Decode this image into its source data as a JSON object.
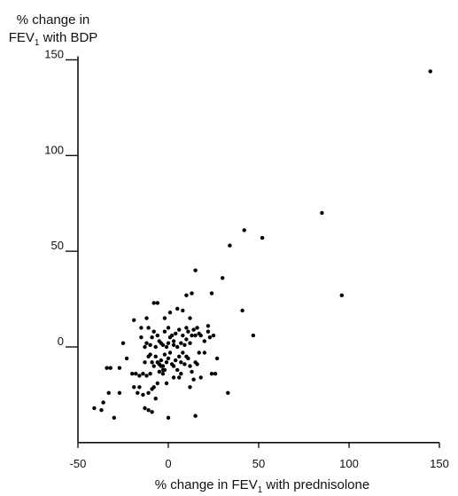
{
  "chart_data": {
    "type": "scatter",
    "ylabel_line1": "% change in",
    "ylabel_line2_pre": "FEV",
    "ylabel_line2_sub": "1",
    "ylabel_line2_post": " with BDP",
    "xlabel_pre": "% change in FEV",
    "xlabel_sub": "1",
    "xlabel_post": " with prednisolone",
    "xlim": [
      -50,
      150
    ],
    "ylim": [
      -50,
      150
    ],
    "x_ticks": [
      -50,
      0,
      50,
      100,
      150
    ],
    "y_ticks": [
      0,
      50,
      100,
      150
    ],
    "x_tick_labels": [
      "-50",
      "0",
      "50",
      "100",
      "150"
    ],
    "y_tick_labels": [
      "0",
      "50",
      "100",
      "150"
    ],
    "grid": false,
    "points": [
      [
        145,
        144
      ],
      [
        85,
        70
      ],
      [
        96,
        27
      ],
      [
        52,
        57
      ],
      [
        42,
        61
      ],
      [
        34,
        53
      ],
      [
        30,
        36
      ],
      [
        15,
        40
      ],
      [
        41,
        19
      ],
      [
        47,
        6
      ],
      [
        33,
        -24
      ],
      [
        15,
        -36
      ],
      [
        0,
        -37
      ],
      [
        -30,
        -37
      ],
      [
        -37,
        -33
      ],
      [
        -36,
        -29
      ],
      [
        -41,
        -32
      ],
      [
        -33,
        -24
      ],
      [
        -27,
        -24
      ],
      [
        -34,
        -11
      ],
      [
        -32,
        -11
      ],
      [
        -27,
        -11
      ],
      [
        -25,
        2
      ],
      [
        -19,
        14
      ],
      [
        -15,
        10
      ],
      [
        -12,
        15
      ],
      [
        -8,
        23
      ],
      [
        -6,
        23
      ],
      [
        -23,
        -6
      ],
      [
        -20,
        -14
      ],
      [
        -18,
        -14
      ],
      [
        -16,
        -15
      ],
      [
        -16,
        -21
      ],
      [
        -14,
        -14
      ],
      [
        -12,
        -15
      ],
      [
        -10,
        -14
      ],
      [
        -11,
        -24
      ],
      [
        -9,
        -22
      ],
      [
        -8,
        -21
      ],
      [
        -7,
        -27
      ],
      [
        -6,
        -19
      ],
      [
        -5,
        -13
      ],
      [
        -4,
        -10
      ],
      [
        -3,
        -10
      ],
      [
        -13,
        -8
      ],
      [
        -11,
        -5
      ],
      [
        -10,
        -4
      ],
      [
        -9,
        -8
      ],
      [
        -8,
        -10
      ],
      [
        -7,
        -5
      ],
      [
        -6,
        -8
      ],
      [
        -5,
        -9
      ],
      [
        -4,
        -7
      ],
      [
        -3,
        -12
      ],
      [
        -2,
        -4
      ],
      [
        -1,
        -8
      ],
      [
        0,
        -6
      ],
      [
        1,
        -3
      ],
      [
        2,
        -9
      ],
      [
        3,
        -10
      ],
      [
        4,
        -7
      ],
      [
        5,
        -12
      ],
      [
        6,
        -5
      ],
      [
        7,
        -8
      ],
      [
        8,
        -3
      ],
      [
        9,
        -9
      ],
      [
        10,
        -5
      ],
      [
        11,
        -6
      ],
      [
        12,
        -10
      ],
      [
        13,
        -13
      ],
      [
        14,
        -17
      ],
      [
        15,
        -8
      ],
      [
        16,
        -9
      ],
      [
        17,
        -3
      ],
      [
        -12,
        2
      ],
      [
        -10,
        1
      ],
      [
        -9,
        5
      ],
      [
        -8,
        8
      ],
      [
        -7,
        0
      ],
      [
        -5,
        3
      ],
      [
        -4,
        2
      ],
      [
        -3,
        1
      ],
      [
        -2,
        8
      ],
      [
        -1,
        0
      ],
      [
        0,
        2
      ],
      [
        1,
        5
      ],
      [
        2,
        6
      ],
      [
        3,
        3
      ],
      [
        4,
        7
      ],
      [
        5,
        0
      ],
      [
        6,
        9
      ],
      [
        7,
        2
      ],
      [
        8,
        6
      ],
      [
        9,
        1
      ],
      [
        10,
        4
      ],
      [
        11,
        8
      ],
      [
        12,
        2
      ],
      [
        13,
        6
      ],
      [
        14,
        9
      ],
      [
        15,
        6
      ],
      [
        16,
        10
      ],
      [
        17,
        7
      ],
      [
        18,
        6
      ],
      [
        20,
        3
      ],
      [
        22,
        8
      ],
      [
        -15,
        5
      ],
      [
        -13,
        0
      ],
      [
        -2,
        15
      ],
      [
        1,
        18
      ],
      [
        5,
        20
      ],
      [
        8,
        19
      ],
      [
        10,
        27
      ],
      [
        13,
        28
      ],
      [
        24,
        28
      ],
      [
        22,
        11
      ],
      [
        23,
        5
      ],
      [
        20,
        -3
      ],
      [
        24,
        -14
      ],
      [
        26,
        -14
      ],
      [
        25,
        6
      ],
      [
        27,
        -6
      ],
      [
        -13,
        -32
      ],
      [
        -11,
        -33
      ],
      [
        -9,
        -34
      ],
      [
        -14,
        -25
      ],
      [
        -17,
        -24
      ],
      [
        -19,
        -21
      ],
      [
        -2,
        -12
      ],
      [
        6,
        -16
      ],
      [
        12,
        -21
      ],
      [
        18,
        -16
      ],
      [
        3,
        -16
      ],
      [
        -1,
        -19
      ],
      [
        -3,
        -14
      ],
      [
        7,
        -14
      ],
      [
        10,
        10
      ],
      [
        12,
        15
      ],
      [
        -11,
        10
      ],
      [
        -6,
        6
      ],
      [
        0,
        10
      ],
      [
        3,
        1
      ]
    ]
  }
}
